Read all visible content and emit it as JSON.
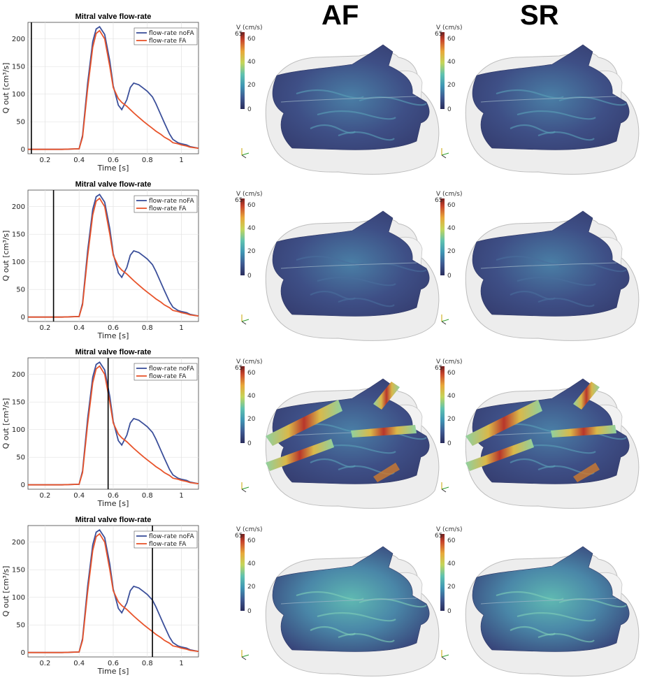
{
  "columns": {
    "af": "AF",
    "sr": "SR"
  },
  "colorbar": {
    "title": "V (cm/s)",
    "max_label": "65",
    "ticks": [
      "60",
      "40",
      "20",
      "0"
    ]
  },
  "colors": {
    "nofa": "#3b4f9a",
    "fa": "#e8542b",
    "marker": "#000000"
  },
  "chart_data": [
    {
      "type": "line",
      "title": "Mitral valve flow-rate",
      "xlabel": "Time [s]",
      "ylabel": "Q out [cm³/s]",
      "xlim": [
        0.1,
        1.1
      ],
      "ylim": [
        -8,
        230
      ],
      "xticks": [
        0.2,
        0.4,
        0.6,
        0.8,
        1
      ],
      "yticks": [
        0,
        50,
        100,
        150,
        200
      ],
      "grid": true,
      "legend": "top-right",
      "time_marker": 0.12,
      "x": [
        0.1,
        0.2,
        0.3,
        0.4,
        0.42,
        0.45,
        0.48,
        0.5,
        0.52,
        0.55,
        0.58,
        0.6,
        0.63,
        0.65,
        0.68,
        0.7,
        0.72,
        0.75,
        0.78,
        0.8,
        0.83,
        0.85,
        0.88,
        0.9,
        0.93,
        0.95,
        0.98,
        1.0,
        1.03,
        1.05,
        1.1
      ],
      "series": [
        {
          "name": "flow-rate noFA",
          "values": [
            0,
            0,
            0,
            1,
            25,
            120,
            195,
            218,
            222,
            208,
            160,
            115,
            80,
            72,
            90,
            112,
            120,
            117,
            110,
            105,
            95,
            83,
            62,
            48,
            28,
            18,
            12,
            10,
            8,
            5,
            2
          ]
        },
        {
          "name": "flow-rate FA",
          "values": [
            0,
            0,
            0,
            1,
            22,
            110,
            185,
            210,
            215,
            200,
            150,
            112,
            92,
            85,
            78,
            72,
            66,
            58,
            50,
            45,
            38,
            33,
            27,
            22,
            17,
            12,
            10,
            8,
            6,
            4,
            2
          ]
        }
      ]
    },
    {
      "type": "line",
      "title": "Mitral valve flow-rate",
      "xlabel": "Time [s]",
      "ylabel": "Q out [cm³/s]",
      "xlim": [
        0.1,
        1.1
      ],
      "ylim": [
        -8,
        230
      ],
      "xticks": [
        0.2,
        0.4,
        0.6,
        0.8,
        1
      ],
      "yticks": [
        0,
        50,
        100,
        150,
        200
      ],
      "grid": true,
      "legend": "top-right",
      "time_marker": 0.25,
      "x": [
        0.1,
        0.2,
        0.3,
        0.4,
        0.42,
        0.45,
        0.48,
        0.5,
        0.52,
        0.55,
        0.58,
        0.6,
        0.63,
        0.65,
        0.68,
        0.7,
        0.72,
        0.75,
        0.78,
        0.8,
        0.83,
        0.85,
        0.88,
        0.9,
        0.93,
        0.95,
        0.98,
        1.0,
        1.03,
        1.05,
        1.1
      ],
      "series": [
        {
          "name": "flow-rate noFA",
          "values": [
            0,
            0,
            0,
            1,
            25,
            120,
            195,
            218,
            222,
            208,
            160,
            115,
            80,
            72,
            90,
            112,
            120,
            117,
            110,
            105,
            95,
            83,
            62,
            48,
            28,
            18,
            12,
            10,
            8,
            5,
            2
          ]
        },
        {
          "name": "flow-rate FA",
          "values": [
            0,
            0,
            0,
            1,
            22,
            110,
            185,
            210,
            215,
            200,
            150,
            112,
            92,
            85,
            78,
            72,
            66,
            58,
            50,
            45,
            38,
            33,
            27,
            22,
            17,
            12,
            10,
            8,
            6,
            4,
            2
          ]
        }
      ]
    },
    {
      "type": "line",
      "title": "Mitral valve flow-rate",
      "xlabel": "Time [s]",
      "ylabel": "Q out [cm³/s]",
      "xlim": [
        0.1,
        1.1
      ],
      "ylim": [
        -8,
        230
      ],
      "xticks": [
        0.2,
        0.4,
        0.6,
        0.8,
        1
      ],
      "yticks": [
        0,
        50,
        100,
        150,
        200
      ],
      "grid": true,
      "legend": "top-right",
      "time_marker": 0.57,
      "x": [
        0.1,
        0.2,
        0.3,
        0.4,
        0.42,
        0.45,
        0.48,
        0.5,
        0.52,
        0.55,
        0.58,
        0.6,
        0.63,
        0.65,
        0.68,
        0.7,
        0.72,
        0.75,
        0.78,
        0.8,
        0.83,
        0.85,
        0.88,
        0.9,
        0.93,
        0.95,
        0.98,
        1.0,
        1.03,
        1.05,
        1.1
      ],
      "series": [
        {
          "name": "flow-rate noFA",
          "values": [
            0,
            0,
            0,
            1,
            25,
            120,
            195,
            218,
            222,
            208,
            160,
            115,
            80,
            72,
            90,
            112,
            120,
            117,
            110,
            105,
            95,
            83,
            62,
            48,
            28,
            18,
            12,
            10,
            8,
            5,
            2
          ]
        },
        {
          "name": "flow-rate FA",
          "values": [
            0,
            0,
            0,
            1,
            22,
            110,
            185,
            210,
            215,
            200,
            150,
            112,
            92,
            85,
            78,
            72,
            66,
            58,
            50,
            45,
            38,
            33,
            27,
            22,
            17,
            12,
            10,
            8,
            6,
            4,
            2
          ]
        }
      ]
    },
    {
      "type": "line",
      "title": "Mitral valve flow-rate",
      "xlabel": "Time [s]",
      "ylabel": "Q out [cm³/s]",
      "xlim": [
        0.1,
        1.1
      ],
      "ylim": [
        -8,
        230
      ],
      "xticks": [
        0.2,
        0.4,
        0.6,
        0.8,
        1
      ],
      "yticks": [
        0,
        50,
        100,
        150,
        200
      ],
      "grid": true,
      "legend": "top-right",
      "time_marker": 0.83,
      "x": [
        0.1,
        0.2,
        0.3,
        0.4,
        0.42,
        0.45,
        0.48,
        0.5,
        0.52,
        0.55,
        0.58,
        0.6,
        0.63,
        0.65,
        0.68,
        0.7,
        0.72,
        0.75,
        0.78,
        0.8,
        0.83,
        0.85,
        0.88,
        0.9,
        0.93,
        0.95,
        0.98,
        1.0,
        1.03,
        1.05,
        1.1
      ],
      "series": [
        {
          "name": "flow-rate noFA",
          "values": [
            0,
            0,
            0,
            1,
            25,
            120,
            195,
            218,
            222,
            208,
            160,
            115,
            80,
            72,
            90,
            112,
            120,
            117,
            110,
            105,
            95,
            83,
            62,
            48,
            28,
            18,
            12,
            10,
            8,
            5,
            2
          ]
        },
        {
          "name": "flow-rate FA",
          "values": [
            0,
            0,
            0,
            1,
            22,
            110,
            185,
            210,
            215,
            200,
            150,
            112,
            92,
            85,
            78,
            72,
            66,
            58,
            50,
            45,
            38,
            33,
            27,
            22,
            17,
            12,
            10,
            8,
            6,
            4,
            2
          ]
        }
      ]
    }
  ],
  "renders": [
    {
      "intensity": "low"
    },
    {
      "intensity": "very-low"
    },
    {
      "intensity": "high-jets"
    },
    {
      "intensity": "medium"
    }
  ]
}
